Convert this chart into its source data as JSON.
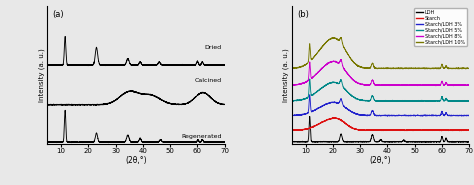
{
  "panel_a_label": "(a)",
  "panel_b_label": "(b)",
  "xlabel": "(2θ,°)",
  "ylabel": "Intensity (a. u.)",
  "xlim": [
    5,
    70
  ],
  "xticks": [
    10,
    20,
    30,
    40,
    50,
    60,
    70
  ],
  "labels_a": [
    "Regenerated",
    "Calcined",
    "Dried"
  ],
  "legend_b": [
    "LDH",
    "Starch",
    "Starch/LDH 3%",
    "Starch/LDH 5%",
    "Starch/LDH 8%",
    "Starch/LDH 10%"
  ],
  "colors_b": [
    "black",
    "#dd1111",
    "#2222cc",
    "#008888",
    "#cc00cc",
    "#777700"
  ],
  "background": "#e8e8e8",
  "linewidth": 0.65
}
